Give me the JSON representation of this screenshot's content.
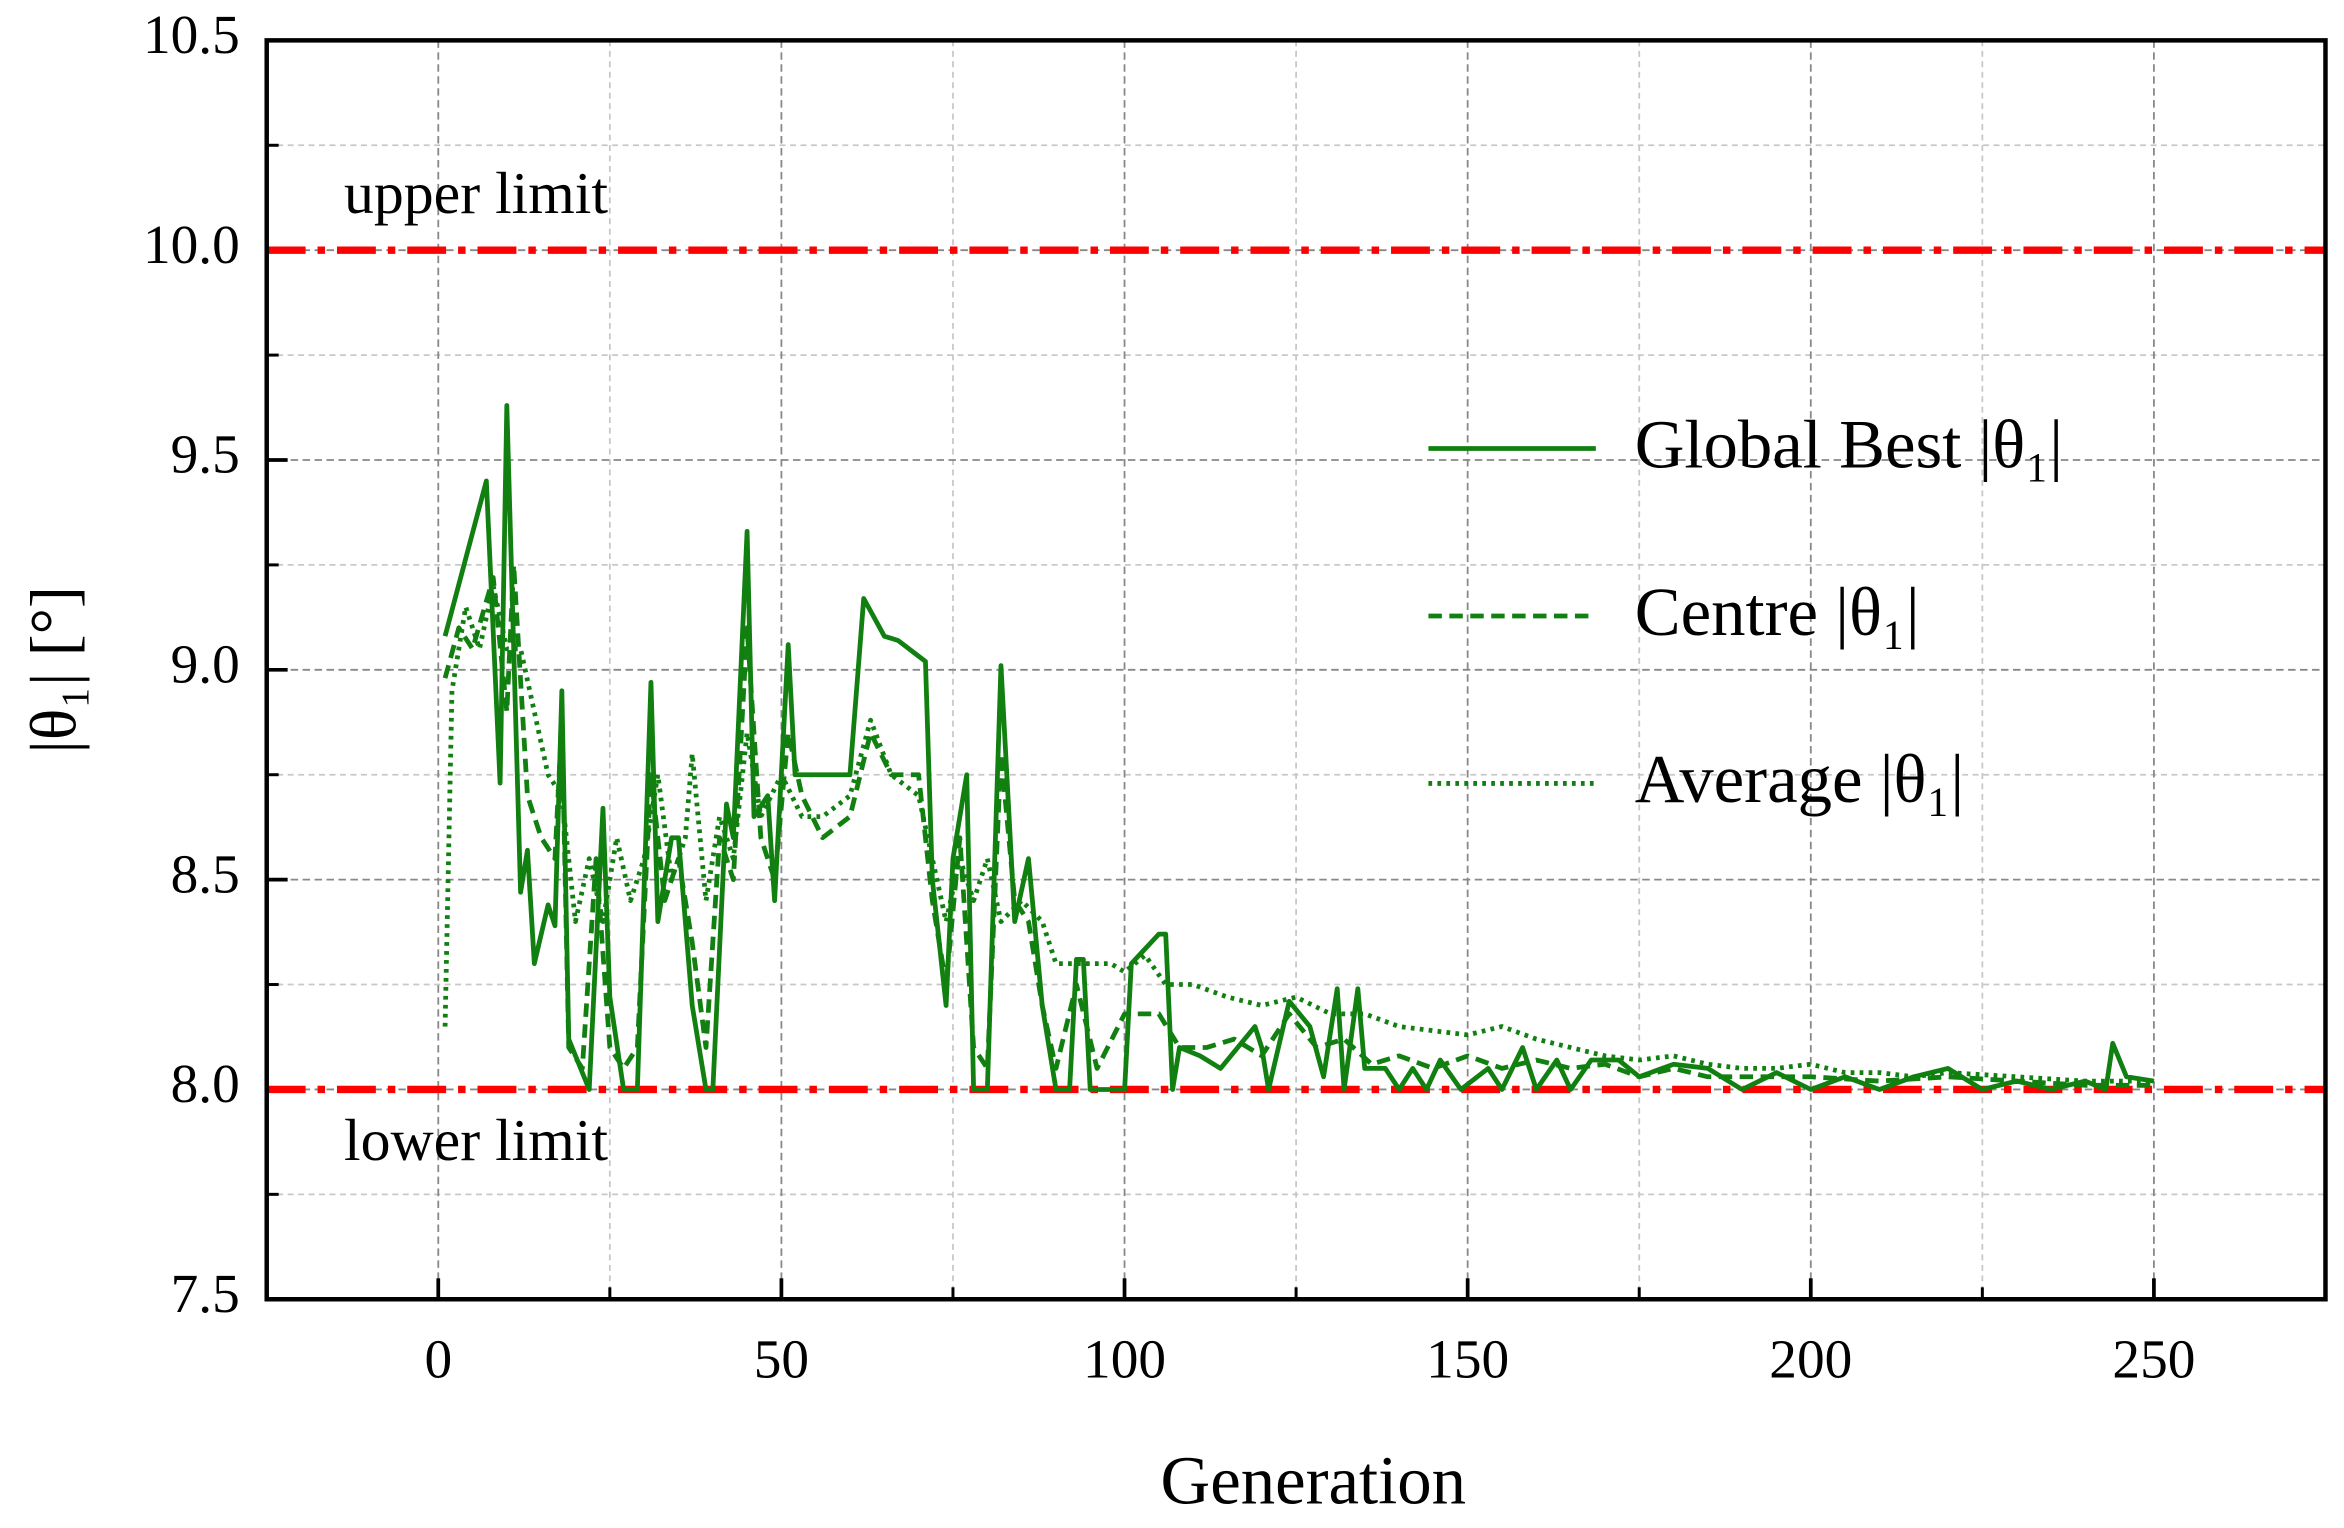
{
  "chart_data": {
    "type": "line",
    "xlabel": "Generation",
    "ylabel": "|θ₁| [°]",
    "xlim": [
      -25,
      275
    ],
    "ylim": [
      7.5,
      10.5
    ],
    "xticks": [
      0,
      50,
      100,
      150,
      200,
      250
    ],
    "yticks": [
      7.5,
      {
        "value": 8,
        "label": "8.0"
      },
      8.5,
      {
        "value": 9,
        "label": "9.0"
      },
      9.5,
      {
        "value": 10,
        "label": "10.0"
      },
      10.5
    ],
    "minor_xticks": [
      25,
      75,
      125,
      175,
      225
    ],
    "minor_yticks": [
      7.75,
      8.25,
      8.75,
      9.25,
      9.75,
      10.25
    ],
    "grid": true,
    "legend": "upper right",
    "limits": [
      {
        "value": 10,
        "label": "upper limit",
        "color": "#ff0000"
      },
      {
        "value": 8,
        "label": "lower limit",
        "color": "#ff0000"
      }
    ],
    "series": [
      {
        "name": "Global Best |θ₁|",
        "color": "#118011",
        "style": "solid",
        "x": [
          1,
          7,
          9,
          10,
          12,
          13,
          14,
          16,
          17,
          18,
          19,
          22,
          24,
          25,
          27,
          29,
          31,
          32,
          34,
          35,
          37,
          39,
          40,
          42,
          43,
          45,
          46,
          48,
          49,
          51,
          52,
          56,
          60,
          62,
          65,
          67,
          71,
          72,
          74,
          75,
          77,
          78,
          80,
          82,
          84,
          86,
          88,
          90,
          92,
          93,
          94,
          95,
          100,
          101,
          105,
          106,
          107,
          108,
          111,
          114,
          119,
          120,
          121,
          124,
          127,
          129,
          131,
          132,
          134,
          135,
          138,
          140,
          142,
          144,
          146,
          149,
          153,
          155,
          158,
          160,
          163,
          165,
          168,
          172,
          175,
          180,
          185,
          190,
          195,
          200,
          205,
          210,
          215,
          220,
          225,
          230,
          235,
          240,
          243,
          244,
          246,
          250
        ],
        "values": [
          9.08,
          9.45,
          8.73,
          9.63,
          8.47,
          8.57,
          8.3,
          8.44,
          8.39,
          8.95,
          8.12,
          8,
          8.67,
          8.22,
          8,
          8,
          8.97,
          8.4,
          8.6,
          8.6,
          8.2,
          8,
          8,
          8.68,
          8.6,
          9.33,
          8.65,
          8.7,
          8.45,
          9.06,
          8.75,
          8.75,
          8.75,
          9.17,
          9.08,
          9.07,
          9.02,
          8.5,
          8.2,
          8.55,
          8.75,
          8,
          8,
          9.01,
          8.4,
          8.55,
          8.2,
          8,
          8,
          8.31,
          8.31,
          8,
          8,
          8.3,
          8.37,
          8.37,
          8,
          8.1,
          8.08,
          8.05,
          8.15,
          8.1,
          8,
          8.21,
          8.15,
          8.03,
          8.24,
          8,
          8.24,
          8.05,
          8.05,
          8,
          8.05,
          8,
          8.07,
          8,
          8.05,
          8,
          8.1,
          8,
          8.07,
          8,
          8.07,
          8.07,
          8.03,
          8.06,
          8.05,
          8,
          8.04,
          8,
          8.03,
          8,
          8.03,
          8.05,
          8,
          8.02,
          8,
          8.02,
          8,
          8.11,
          8.03,
          8.02
        ]
      },
      {
        "name": "Centre |θ₁|",
        "color": "#118011",
        "style": "dashed",
        "x": [
          1,
          3,
          5,
          8,
          10,
          11,
          13,
          15,
          17,
          18,
          19,
          21,
          23,
          25,
          27,
          29,
          31,
          33,
          35,
          37,
          39,
          41,
          43,
          45,
          47,
          49,
          51,
          53,
          56,
          60,
          63,
          66,
          70,
          72,
          74,
          76,
          78,
          80,
          82,
          84,
          86,
          88,
          90,
          93,
          96,
          100,
          105,
          108,
          112,
          116,
          120,
          124,
          128,
          132,
          136,
          140,
          145,
          150,
          155,
          160,
          165,
          170,
          175,
          180,
          185,
          190,
          195,
          200,
          210,
          220,
          230,
          240,
          250
        ],
        "values": [
          8.98,
          9.1,
          9.05,
          9.22,
          8.9,
          9.25,
          8.7,
          8.6,
          8.55,
          8.88,
          8.1,
          8.05,
          8.55,
          8.1,
          8.05,
          8.1,
          8.75,
          8.45,
          8.55,
          8.35,
          8.1,
          8.6,
          8.5,
          9.1,
          8.6,
          8.5,
          8.85,
          8.7,
          8.6,
          8.65,
          8.85,
          8.75,
          8.75,
          8.45,
          8.25,
          8.6,
          8.1,
          8.05,
          8.8,
          8.45,
          8.4,
          8.2,
          8.05,
          8.25,
          8.05,
          8.18,
          8.18,
          8.1,
          8.1,
          8.12,
          8.08,
          8.18,
          8.1,
          8.12,
          8.06,
          8.08,
          8.05,
          8.08,
          8.05,
          8.07,
          8.05,
          8.06,
          8.03,
          8.05,
          8.03,
          8.03,
          8.03,
          8.03,
          8.02,
          8.03,
          8.02,
          8.01,
          8.01
        ]
      },
      {
        "name": "Average |θ₁|",
        "color": "#118011",
        "style": "dotted",
        "x": [
          1,
          2,
          4,
          6,
          8,
          10,
          12,
          14,
          16,
          18,
          20,
          22,
          24,
          26,
          28,
          30,
          32,
          34,
          36,
          37,
          39,
          41,
          43,
          45,
          47,
          50,
          53,
          56,
          60,
          63,
          66,
          70,
          72,
          74,
          76,
          78,
          80,
          82,
          85,
          88,
          90,
          94,
          98,
          100,
          103,
          106,
          110,
          115,
          120,
          125,
          130,
          135,
          140,
          145,
          150,
          155,
          160,
          165,
          170,
          175,
          180,
          185,
          190,
          195,
          200,
          205,
          210,
          215,
          220,
          230,
          240,
          250
        ],
        "values": [
          8.15,
          8.95,
          9.15,
          9.05,
          9.2,
          9.05,
          9.05,
          8.9,
          8.75,
          8.7,
          8.4,
          8.55,
          8.4,
          8.6,
          8.45,
          8.55,
          8.75,
          8.5,
          8.6,
          8.8,
          8.45,
          8.65,
          8.55,
          8.85,
          8.65,
          8.75,
          8.65,
          8.65,
          8.7,
          8.88,
          8.75,
          8.7,
          8.55,
          8.4,
          8.55,
          8.45,
          8.55,
          8.4,
          8.45,
          8.4,
          8.3,
          8.3,
          8.3,
          8.28,
          8.32,
          8.25,
          8.25,
          8.22,
          8.2,
          8.22,
          8.18,
          8.18,
          8.15,
          8.14,
          8.13,
          8.15,
          8.12,
          8.1,
          8.08,
          8.07,
          8.08,
          8.06,
          8.05,
          8.05,
          8.06,
          8.04,
          8.04,
          8.03,
          8.04,
          8.03,
          8.02,
          8.02
        ]
      }
    ]
  }
}
